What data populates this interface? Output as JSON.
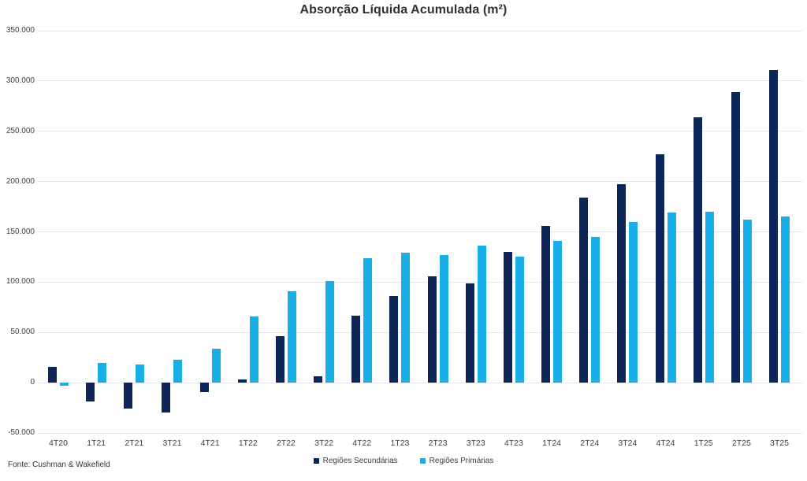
{
  "title": "Absorção Líquida Acumulada (m²)",
  "source": "Fonte: Cushman & Wakefield",
  "colors": {
    "secondary_navy": "#0e2657",
    "primary_cyan": "#1aaee9",
    "gridline": "#e5e6e8",
    "axis_text": "#404040",
    "title_text": "#303030"
  },
  "legend": [
    {
      "label": "Regiões Secundárias",
      "color_key": "secondary_navy"
    },
    {
      "label": "Regiões Primárias",
      "color_key": "primary_cyan"
    }
  ],
  "chart_data": {
    "type": "bar",
    "title": "Absorção Líquida Acumulada (m²)",
    "xlabel": "",
    "ylabel": "",
    "categories": [
      "4T20",
      "1T21",
      "2T21",
      "3T21",
      "4T21",
      "1T22",
      "2T22",
      "3T22",
      "4T22",
      "1T23",
      "2T23",
      "3T23",
      "4T23",
      "1T24",
      "2T24",
      "3T24",
      "4T24",
      "1T25",
      "2T25",
      "3T25"
    ],
    "series": [
      {
        "name": "Regiões Secundárias",
        "color_key": "secondary_navy",
        "values": [
          16000,
          -19000,
          -26000,
          -30000,
          -9000,
          3000,
          46000,
          6000,
          67000,
          86000,
          106000,
          99000,
          130000,
          156000,
          184000,
          197000,
          227000,
          264000,
          289000,
          311000
        ]
      },
      {
        "name": "Regiões Primárias",
        "color_key": "primary_cyan",
        "values": [
          -3000,
          20000,
          18000,
          23000,
          34000,
          66000,
          91000,
          101000,
          124000,
          129000,
          127000,
          136000,
          125000,
          141000,
          145000,
          160000,
          169000,
          170000,
          162000,
          165000
        ]
      }
    ],
    "ylim": [
      -50000,
      350000
    ],
    "ytick_interval": 50000,
    "ytick_labels": [
      "350.000",
      "300.000",
      "250.000",
      "200.000",
      "150.000",
      "100.000",
      "50.000",
      "0",
      "-50.000"
    ],
    "grid": "horizontal",
    "legend_position": "bottom"
  }
}
